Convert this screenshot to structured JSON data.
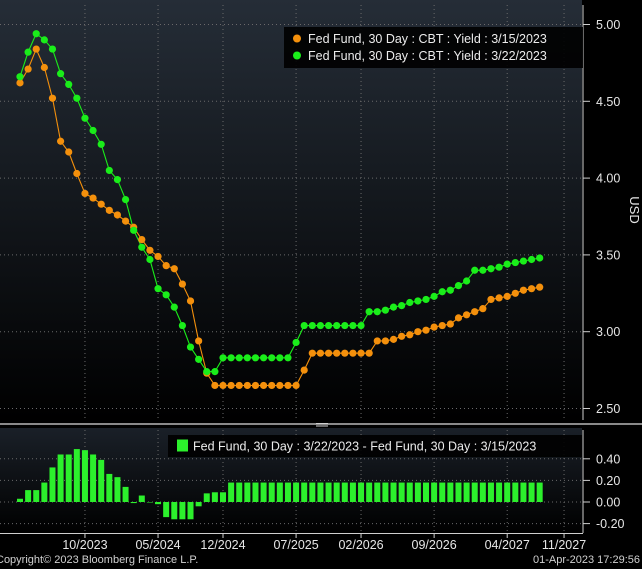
{
  "footer": {
    "copyright": "Copyright© 2023 Bloomberg Finance L.P.",
    "timestamp": "01-Apr-2023 17:29:56"
  },
  "colors": {
    "series_a": "#f4900c",
    "series_b": "#1aee1a",
    "diff_bars": "#2cf02c",
    "axis_text": "#e6e6e6",
    "grid": "#6a6a6a",
    "panel_top": "#222a33"
  },
  "chart_data": [
    {
      "type": "line",
      "ylabel": "USD",
      "ylim": [
        2.42,
        5.1
      ],
      "yticks": [
        "2.50",
        "3.00",
        "3.50",
        "4.00",
        "4.50",
        "5.00"
      ],
      "grid": true,
      "legend_position": "top-right",
      "series": [
        {
          "name": "Fed Fund, 30 Day : CBT : Yield : 3/15/2023",
          "values": [
            4.62,
            4.71,
            4.84,
            4.72,
            4.52,
            4.24,
            4.17,
            4.03,
            3.9,
            3.87,
            3.83,
            3.79,
            3.76,
            3.72,
            3.68,
            3.6,
            3.53,
            3.49,
            3.43,
            3.41,
            3.31,
            3.2,
            2.94,
            2.73,
            2.65,
            2.65,
            2.65,
            2.65,
            2.65,
            2.65,
            2.65,
            2.65,
            2.65,
            2.65,
            2.65,
            2.75,
            2.86,
            2.86,
            2.86,
            2.86,
            2.86,
            2.86,
            2.86,
            2.86,
            2.94,
            2.94,
            2.95,
            2.97,
            2.98,
            3.0,
            3.01,
            3.03,
            3.04,
            3.05,
            3.09,
            3.11,
            3.13,
            3.15,
            3.21,
            3.22,
            3.23,
            3.25,
            3.27,
            3.28,
            3.29
          ]
        },
        {
          "name": "Fed Fund, 30 Day : CBT : Yield : 3/22/2023",
          "values": [
            4.66,
            4.82,
            4.94,
            4.9,
            4.84,
            4.68,
            4.61,
            4.52,
            4.39,
            4.31,
            4.22,
            4.05,
            3.99,
            3.86,
            3.66,
            3.55,
            3.47,
            3.28,
            3.24,
            3.16,
            3.04,
            2.9,
            2.82,
            2.74,
            2.74,
            2.83,
            2.83,
            2.83,
            2.83,
            2.83,
            2.83,
            2.83,
            2.83,
            2.83,
            2.93,
            3.04,
            3.04,
            3.04,
            3.04,
            3.04,
            3.04,
            3.04,
            3.04,
            3.13,
            3.13,
            3.14,
            3.16,
            3.17,
            3.19,
            3.2,
            3.21,
            3.23,
            3.26,
            3.27,
            3.3,
            3.33,
            3.4,
            3.4,
            3.41,
            3.42,
            3.44,
            3.45,
            3.46,
            3.47,
            3.48
          ]
        }
      ]
    },
    {
      "type": "bar",
      "ylim": [
        -0.26,
        0.48
      ],
      "yticks": [
        "-0.20",
        "0.00",
        "0.20",
        "0.40"
      ],
      "grid": true,
      "legend_position": "top-right",
      "series": [
        {
          "name": "Fed Fund, 30 Day : 3/22/2023 - Fed Fund, 30 Day : 3/15/2023",
          "values": [
            0.03,
            0.11,
            0.11,
            0.18,
            0.32,
            0.44,
            0.44,
            0.49,
            0.48,
            0.44,
            0.39,
            0.26,
            0.23,
            0.14,
            -0.01,
            0.06,
            0,
            -0.02,
            -0.14,
            -0.16,
            -0.16,
            -0.16,
            -0.04,
            0.08,
            0.09,
            0.09,
            0.18,
            0.18,
            0.18,
            0.18,
            0.18,
            0.18,
            0.18,
            0.18,
            0.18,
            0.18,
            0.18,
            0.18,
            0.18,
            0.18,
            0.18,
            0.18,
            0.18,
            0.18,
            0.18,
            0.18,
            0.18,
            0.18,
            0.18,
            0.18,
            0.18,
            0.18,
            0.18,
            0.18,
            0.18,
            0.18,
            0.18,
            0.18,
            0.18,
            0.18,
            0.18,
            0.18,
            0.18,
            0.18,
            0.18
          ]
        }
      ],
      "xticks": [
        "10/2023",
        "05/2024",
        "12/2024",
        "07/2025",
        "02/2026",
        "09/2026",
        "04/2027",
        "11/2027"
      ]
    }
  ]
}
